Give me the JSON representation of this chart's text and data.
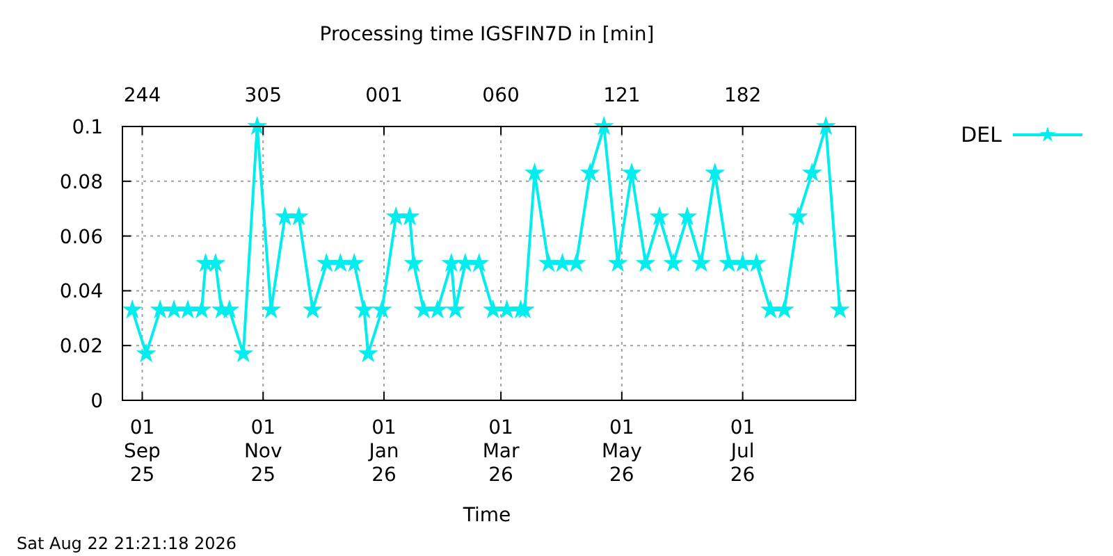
{
  "chart_data": {
    "type": "line",
    "title": "Processing time IGSFIN7D in [min]",
    "xlabel": "Time",
    "x": [
      "2025-08-27",
      "2025-09-03",
      "2025-09-10",
      "2025-09-17",
      "2025-09-24",
      "2025-10-01",
      "2025-10-03",
      "2025-10-08",
      "2025-10-11",
      "2025-10-15",
      "2025-10-22",
      "2025-10-29",
      "2025-11-05",
      "2025-11-12",
      "2025-11-19",
      "2025-11-26",
      "2025-12-03",
      "2025-12-10",
      "2025-12-17",
      "2025-12-22",
      "2025-12-24",
      "2025-12-31",
      "2026-01-07",
      "2026-01-14",
      "2026-01-16",
      "2026-01-21",
      "2026-01-28",
      "2026-02-04",
      "2026-02-06",
      "2026-02-11",
      "2026-02-18",
      "2026-02-25",
      "2026-03-04",
      "2026-03-11",
      "2026-03-13",
      "2026-03-18",
      "2026-03-25",
      "2026-04-01",
      "2026-04-08",
      "2026-04-15",
      "2026-04-22",
      "2026-04-29",
      "2026-05-06",
      "2026-05-13",
      "2026-05-20",
      "2026-05-27",
      "2026-06-03",
      "2026-06-10",
      "2026-06-17",
      "2026-06-24",
      "2026-07-01",
      "2026-07-08",
      "2026-07-15",
      "2026-07-22",
      "2026-07-29",
      "2026-08-05",
      "2026-08-12",
      "2026-08-19"
    ],
    "series": [
      {
        "name": "DEL",
        "color": "#00eeee",
        "values": [
          0.033,
          0.017,
          0.033,
          0.033,
          0.033,
          0.033,
          0.05,
          0.05,
          0.033,
          0.033,
          0.017,
          0.1,
          0.033,
          0.067,
          0.067,
          0.033,
          0.05,
          0.05,
          0.05,
          0.033,
          0.017,
          0.033,
          0.067,
          0.067,
          0.05,
          0.033,
          0.033,
          0.05,
          0.033,
          0.05,
          0.05,
          0.033,
          0.033,
          0.033,
          0.033,
          0.083,
          0.05,
          0.05,
          0.05,
          0.083,
          0.1,
          0.05,
          0.083,
          0.05,
          0.067,
          0.05,
          0.067,
          0.05,
          0.083,
          0.05,
          0.05,
          0.05,
          0.033,
          0.033,
          0.067,
          0.083,
          0.1,
          0.033
        ]
      }
    ],
    "xlim": [
      "2025-08-22",
      "2026-08-27"
    ],
    "xticks": [
      {
        "value": "2025-09-01",
        "label": "01\nSep\n25"
      },
      {
        "value": "2025-11-01",
        "label": "01\nNov\n25"
      },
      {
        "value": "2026-01-01",
        "label": "01\nJan\n26"
      },
      {
        "value": "2026-03-01",
        "label": "01\nMar\n26"
      },
      {
        "value": "2026-05-01",
        "label": "01\nMay\n26"
      },
      {
        "value": "2026-07-01",
        "label": "01\nJul\n26"
      }
    ],
    "x2lim": [
      "2025-08-22",
      "2026-08-27"
    ],
    "x2ticks": [
      {
        "value": "2025-09-01",
        "label": "244"
      },
      {
        "value": "2025-11-01",
        "label": "305"
      },
      {
        "value": "2026-01-01",
        "label": "001"
      },
      {
        "value": "2026-03-01",
        "label": "060"
      },
      {
        "value": "2026-05-01",
        "label": "121"
      },
      {
        "value": "2026-07-01",
        "label": "182"
      }
    ],
    "ylim": [
      0,
      0.1
    ],
    "yticks": [
      0,
      0.02,
      0.04,
      0.06,
      0.08,
      0.1
    ],
    "grid": true,
    "legend": "top right",
    "marker": "star",
    "line_style": "solid",
    "annotations": [
      "Sat Aug 22 21:21:18 2026"
    ]
  }
}
